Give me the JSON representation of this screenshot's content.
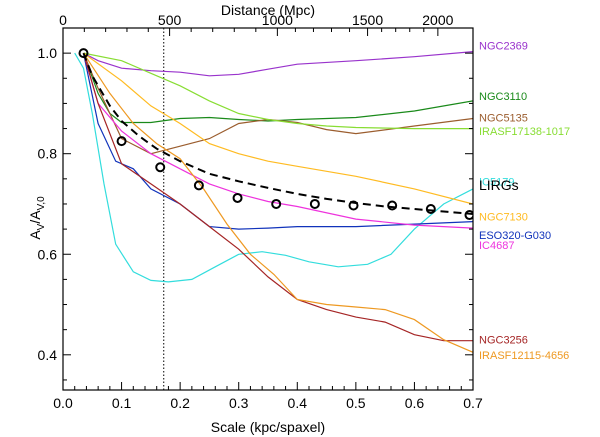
{
  "chart_data": {
    "type": "line",
    "xlabel": "Scale (kpc/spaxel)",
    "ylabel": "A",
    "ylabel_parts": {
      "main": "A",
      "sub_num": "V",
      "slash": "/A",
      "sub_den": "V,0"
    },
    "top_xlabel": "Distance (Mpc)",
    "xlim": [
      0.0,
      0.7
    ],
    "ylim": [
      0.33,
      1.05
    ],
    "x_ticks": [
      "0.0",
      "0.1",
      "0.2",
      "0.3",
      "0.4",
      "0.5",
      "0.6",
      "0.7"
    ],
    "x_tick_values": [
      0.0,
      0.1,
      0.2,
      0.3,
      0.4,
      0.5,
      0.6,
      0.7
    ],
    "y_ticks": [
      "0.4",
      "0.6",
      "0.8",
      "1.0"
    ],
    "y_tick_values": [
      0.4,
      0.6,
      0.8,
      1.0
    ],
    "top_ticks": [
      "0",
      "500",
      "1000",
      "1500",
      "2000"
    ],
    "top_tick_values": [
      0.0,
      0.182,
      0.366,
      0.52,
      0.64
    ],
    "vline_x": 0.172,
    "series": [
      {
        "name": "NGC2369",
        "color": "#9933cc",
        "label_y": 1.015,
        "x": [
          0.035,
          0.06,
          0.1,
          0.15,
          0.2,
          0.25,
          0.3,
          0.35,
          0.4,
          0.5,
          0.6,
          0.7
        ],
        "y": [
          1.0,
          0.985,
          0.97,
          0.965,
          0.962,
          0.955,
          0.958,
          0.968,
          0.978,
          0.985,
          0.993,
          1.003
        ]
      },
      {
        "name": "NGC3110",
        "color": "#1a8a1a",
        "label_y": 0.915,
        "x": [
          0.035,
          0.06,
          0.08,
          0.1,
          0.15,
          0.2,
          0.25,
          0.3,
          0.35,
          0.4,
          0.5,
          0.6,
          0.7
        ],
        "y": [
          1.0,
          0.92,
          0.88,
          0.862,
          0.862,
          0.87,
          0.872,
          0.868,
          0.865,
          0.868,
          0.872,
          0.885,
          0.905
        ]
      },
      {
        "name": "NGC5135",
        "color": "#9b5d2e",
        "label_y": 0.872,
        "x": [
          0.035,
          0.06,
          0.1,
          0.15,
          0.2,
          0.25,
          0.3,
          0.35,
          0.4,
          0.45,
          0.5,
          0.6,
          0.7
        ],
        "y": [
          1.0,
          0.93,
          0.83,
          0.8,
          0.815,
          0.83,
          0.86,
          0.868,
          0.862,
          0.848,
          0.84,
          0.855,
          0.87
        ]
      },
      {
        "name": "IRASF17138-1017",
        "color": "#88dd33",
        "label_y": 0.845,
        "x": [
          0.035,
          0.1,
          0.15,
          0.2,
          0.25,
          0.3,
          0.35,
          0.4,
          0.45,
          0.5,
          0.6,
          0.7
        ],
        "y": [
          1.0,
          0.985,
          0.96,
          0.935,
          0.905,
          0.88,
          0.868,
          0.86,
          0.855,
          0.852,
          0.85,
          0.85
        ]
      },
      {
        "name": "IC5179",
        "color": "#33dddd",
        "label_y": 0.745,
        "x": [
          0.02,
          0.035,
          0.05,
          0.07,
          0.09,
          0.12,
          0.15,
          0.18,
          0.22,
          0.26,
          0.3,
          0.34,
          0.38,
          0.42,
          0.47,
          0.52,
          0.56,
          0.6,
          0.65,
          0.7
        ],
        "y": [
          1.0,
          0.97,
          0.88,
          0.74,
          0.62,
          0.565,
          0.548,
          0.545,
          0.55,
          0.575,
          0.6,
          0.605,
          0.598,
          0.585,
          0.575,
          0.58,
          0.6,
          0.65,
          0.7,
          0.73
        ]
      },
      {
        "name": "NGC7130",
        "color": "#ffbb22",
        "label_y": 0.675,
        "x": [
          0.035,
          0.1,
          0.15,
          0.2,
          0.25,
          0.3,
          0.35,
          0.4,
          0.5,
          0.6,
          0.7
        ],
        "y": [
          1.0,
          0.945,
          0.895,
          0.86,
          0.82,
          0.8,
          0.785,
          0.775,
          0.755,
          0.73,
          0.7
        ]
      },
      {
        "name": "ESO320-G030",
        "color": "#1133bb",
        "label_y": 0.638,
        "x": [
          0.035,
          0.06,
          0.09,
          0.12,
          0.15,
          0.2,
          0.25,
          0.3,
          0.35,
          0.4,
          0.5,
          0.6,
          0.7
        ],
        "y": [
          1.0,
          0.86,
          0.785,
          0.77,
          0.73,
          0.7,
          0.655,
          0.65,
          0.652,
          0.655,
          0.655,
          0.66,
          0.665
        ]
      },
      {
        "name": "IC4687",
        "color": "#ee33dd",
        "label_y": 0.618,
        "x": [
          0.035,
          0.06,
          0.1,
          0.15,
          0.2,
          0.25,
          0.3,
          0.35,
          0.4,
          0.5,
          0.6,
          0.7
        ],
        "y": [
          1.0,
          0.9,
          0.845,
          0.8,
          0.77,
          0.74,
          0.72,
          0.705,
          0.695,
          0.67,
          0.658,
          0.652
        ]
      },
      {
        "name": "NGC3256",
        "color": "#a52525",
        "label_y": 0.43,
        "x": [
          0.035,
          0.06,
          0.1,
          0.15,
          0.2,
          0.25,
          0.3,
          0.35,
          0.4,
          0.45,
          0.5,
          0.55,
          0.6,
          0.65,
          0.7
        ],
        "y": [
          1.0,
          0.9,
          0.78,
          0.74,
          0.7,
          0.655,
          0.61,
          0.555,
          0.51,
          0.49,
          0.475,
          0.465,
          0.44,
          0.428,
          0.428
        ]
      },
      {
        "name": "IRASF12115-4656",
        "color": "#ee9922",
        "label_y": 0.4,
        "x": [
          0.035,
          0.08,
          0.12,
          0.16,
          0.2,
          0.24,
          0.28,
          0.32,
          0.36,
          0.4,
          0.45,
          0.5,
          0.55,
          0.6,
          0.65,
          0.7
        ],
        "y": [
          1.0,
          0.92,
          0.86,
          0.82,
          0.79,
          0.73,
          0.66,
          0.6,
          0.56,
          0.51,
          0.5,
          0.495,
          0.49,
          0.47,
          0.43,
          0.405
        ]
      }
    ],
    "lirgs_fit": {
      "name": "LIRGs",
      "color": "#000000",
      "label_y": 0.738,
      "x": [
        0.035,
        0.05,
        0.08,
        0.1,
        0.13,
        0.16,
        0.2,
        0.25,
        0.3,
        0.35,
        0.4,
        0.45,
        0.5,
        0.55,
        0.6,
        0.65,
        0.7
      ],
      "y": [
        1.0,
        0.955,
        0.895,
        0.865,
        0.835,
        0.81,
        0.785,
        0.76,
        0.745,
        0.732,
        0.72,
        0.71,
        0.702,
        0.695,
        0.69,
        0.685,
        0.68
      ]
    },
    "lirgs_points": {
      "x": [
        0.035,
        0.1,
        0.166,
        0.232,
        0.298,
        0.364,
        0.43,
        0.496,
        0.562,
        0.628,
        0.694
      ],
      "y": [
        1.0,
        0.825,
        0.773,
        0.737,
        0.712,
        0.7,
        0.7,
        0.697,
        0.697,
        0.69,
        0.678
      ]
    }
  }
}
